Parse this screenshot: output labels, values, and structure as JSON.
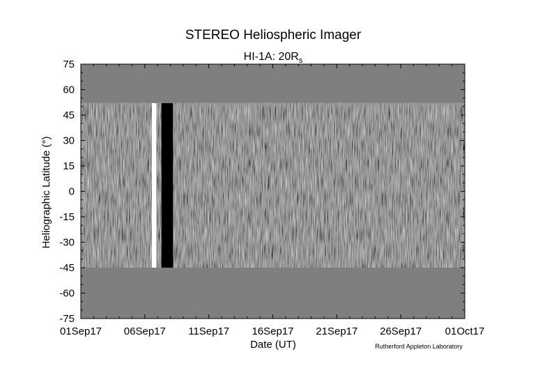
{
  "chart_data": {
    "type": "heatmap",
    "title": "STEREO Heliospheric Imager",
    "subtitle": {
      "main": "HI-1A: 20R",
      "subscript": "s"
    },
    "xlabel": "Date (UT)",
    "ylabel": "Heliographic Latitude (°)",
    "credit": "Rutherford Appleton Laboratory",
    "x_ticks": [
      "01Sep17",
      "06Sep17",
      "11Sep17",
      "16Sep17",
      "21Sep17",
      "26Sep17",
      "01Oct17"
    ],
    "xlim": [
      "2017-09-01",
      "2017-10-01"
    ],
    "y_ticks": [
      75,
      60,
      45,
      30,
      15,
      0,
      -15,
      -30,
      -45,
      -60,
      -75
    ],
    "ylim": [
      -75,
      75
    ],
    "data_latitude_range": [
      -45,
      52
    ],
    "no_data_gaps": [
      {
        "start": "2017-09-06.55",
        "end": "2017-09-06.9",
        "fill": "white"
      },
      {
        "start": "2017-09-07.3",
        "end": "2017-09-08.2",
        "fill": "black"
      }
    ],
    "colors": {
      "background": "#7f7f7f",
      "no_data": "#7f7f7f",
      "frame": "#000000"
    }
  }
}
